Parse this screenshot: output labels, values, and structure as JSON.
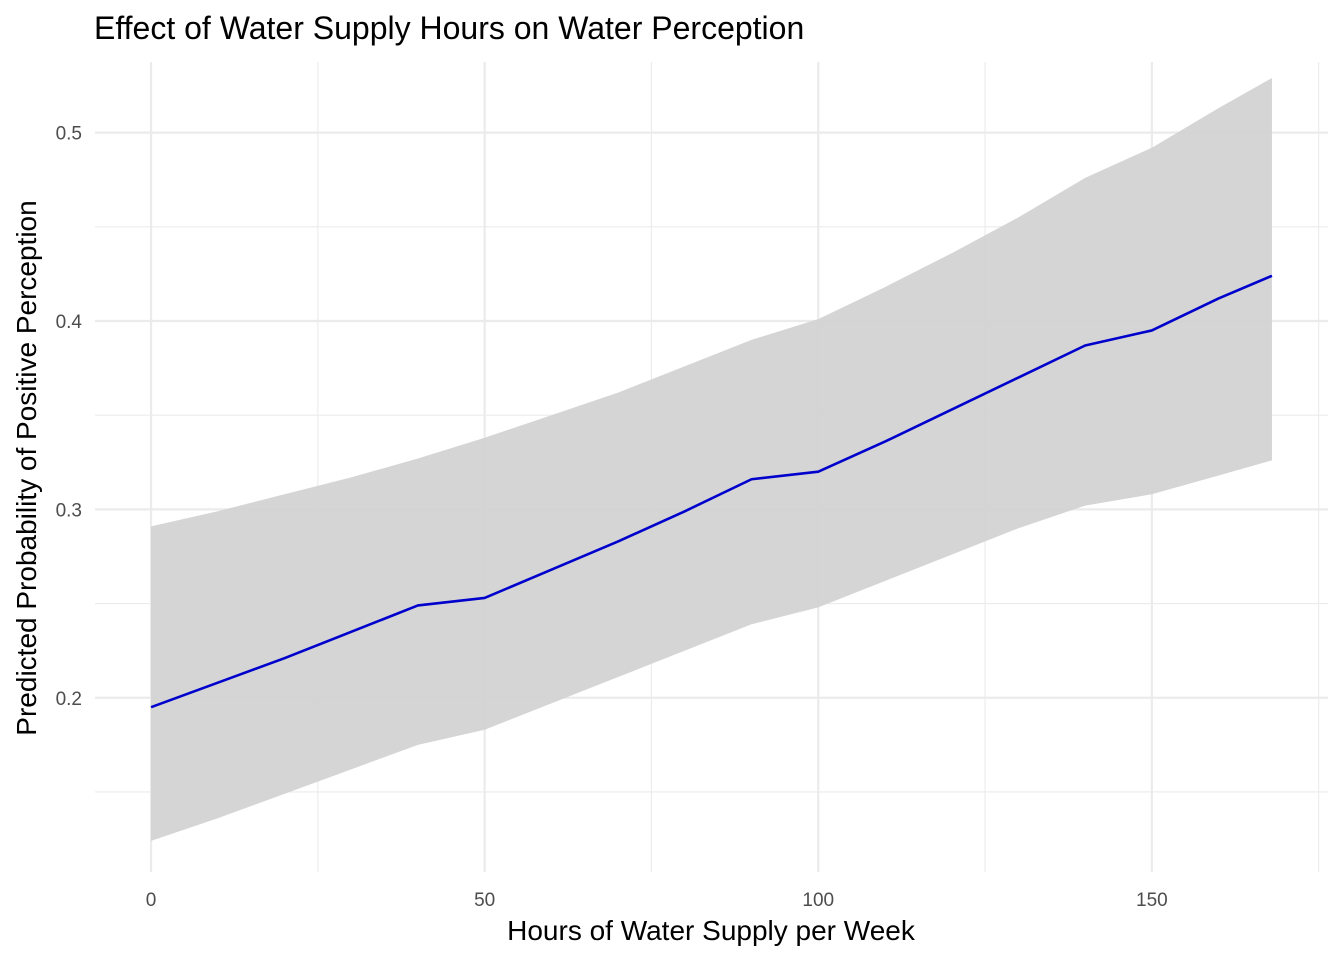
{
  "chart_data": {
    "type": "line",
    "title": "Effect of Water Supply Hours on Water Perception",
    "xlabel": "Hours of Water Supply per Week",
    "ylabel": "Predicted Probability of Positive Perception",
    "xlim": [
      -8.4,
      176.4
    ],
    "ylim": [
      0.1075,
      0.5375
    ],
    "x_ticks": [
      0,
      50,
      100,
      150
    ],
    "x_tick_labels": [
      "0",
      "50",
      "100",
      "150"
    ],
    "x_minor_ticks": [
      25,
      75,
      125,
      175
    ],
    "y_ticks": [
      0.2,
      0.3,
      0.4,
      0.5
    ],
    "y_tick_labels": [
      "0.2",
      "0.3",
      "0.4",
      "0.5"
    ],
    "y_minor_ticks": [
      0.15,
      0.25,
      0.35,
      0.45
    ],
    "grid": true,
    "legend": "none",
    "x": [
      0,
      10,
      20,
      30,
      40,
      50,
      60,
      70,
      80,
      90,
      100,
      110,
      120,
      130,
      140,
      150,
      160,
      168
    ],
    "series": [
      {
        "values": [
          0.195,
          0.208,
          0.221,
          0.235,
          0.249,
          0.253,
          0.268,
          0.283,
          0.299,
          0.316,
          0.32,
          0.336,
          0.353,
          0.37,
          0.387,
          0.395,
          0.412,
          0.424
        ],
        "color": "#0000cc"
      }
    ],
    "ribbon": {
      "lower": [
        0.124,
        0.136,
        0.149,
        0.162,
        0.175,
        0.183,
        0.197,
        0.211,
        0.225,
        0.239,
        0.248,
        0.262,
        0.276,
        0.29,
        0.302,
        0.308,
        0.318,
        0.326
      ],
      "upper": [
        0.291,
        0.299,
        0.308,
        0.317,
        0.327,
        0.338,
        0.35,
        0.362,
        0.376,
        0.39,
        0.401,
        0.418,
        0.436,
        0.455,
        0.476,
        0.492,
        0.513,
        0.529
      ],
      "color": "#d3d3d3"
    }
  }
}
